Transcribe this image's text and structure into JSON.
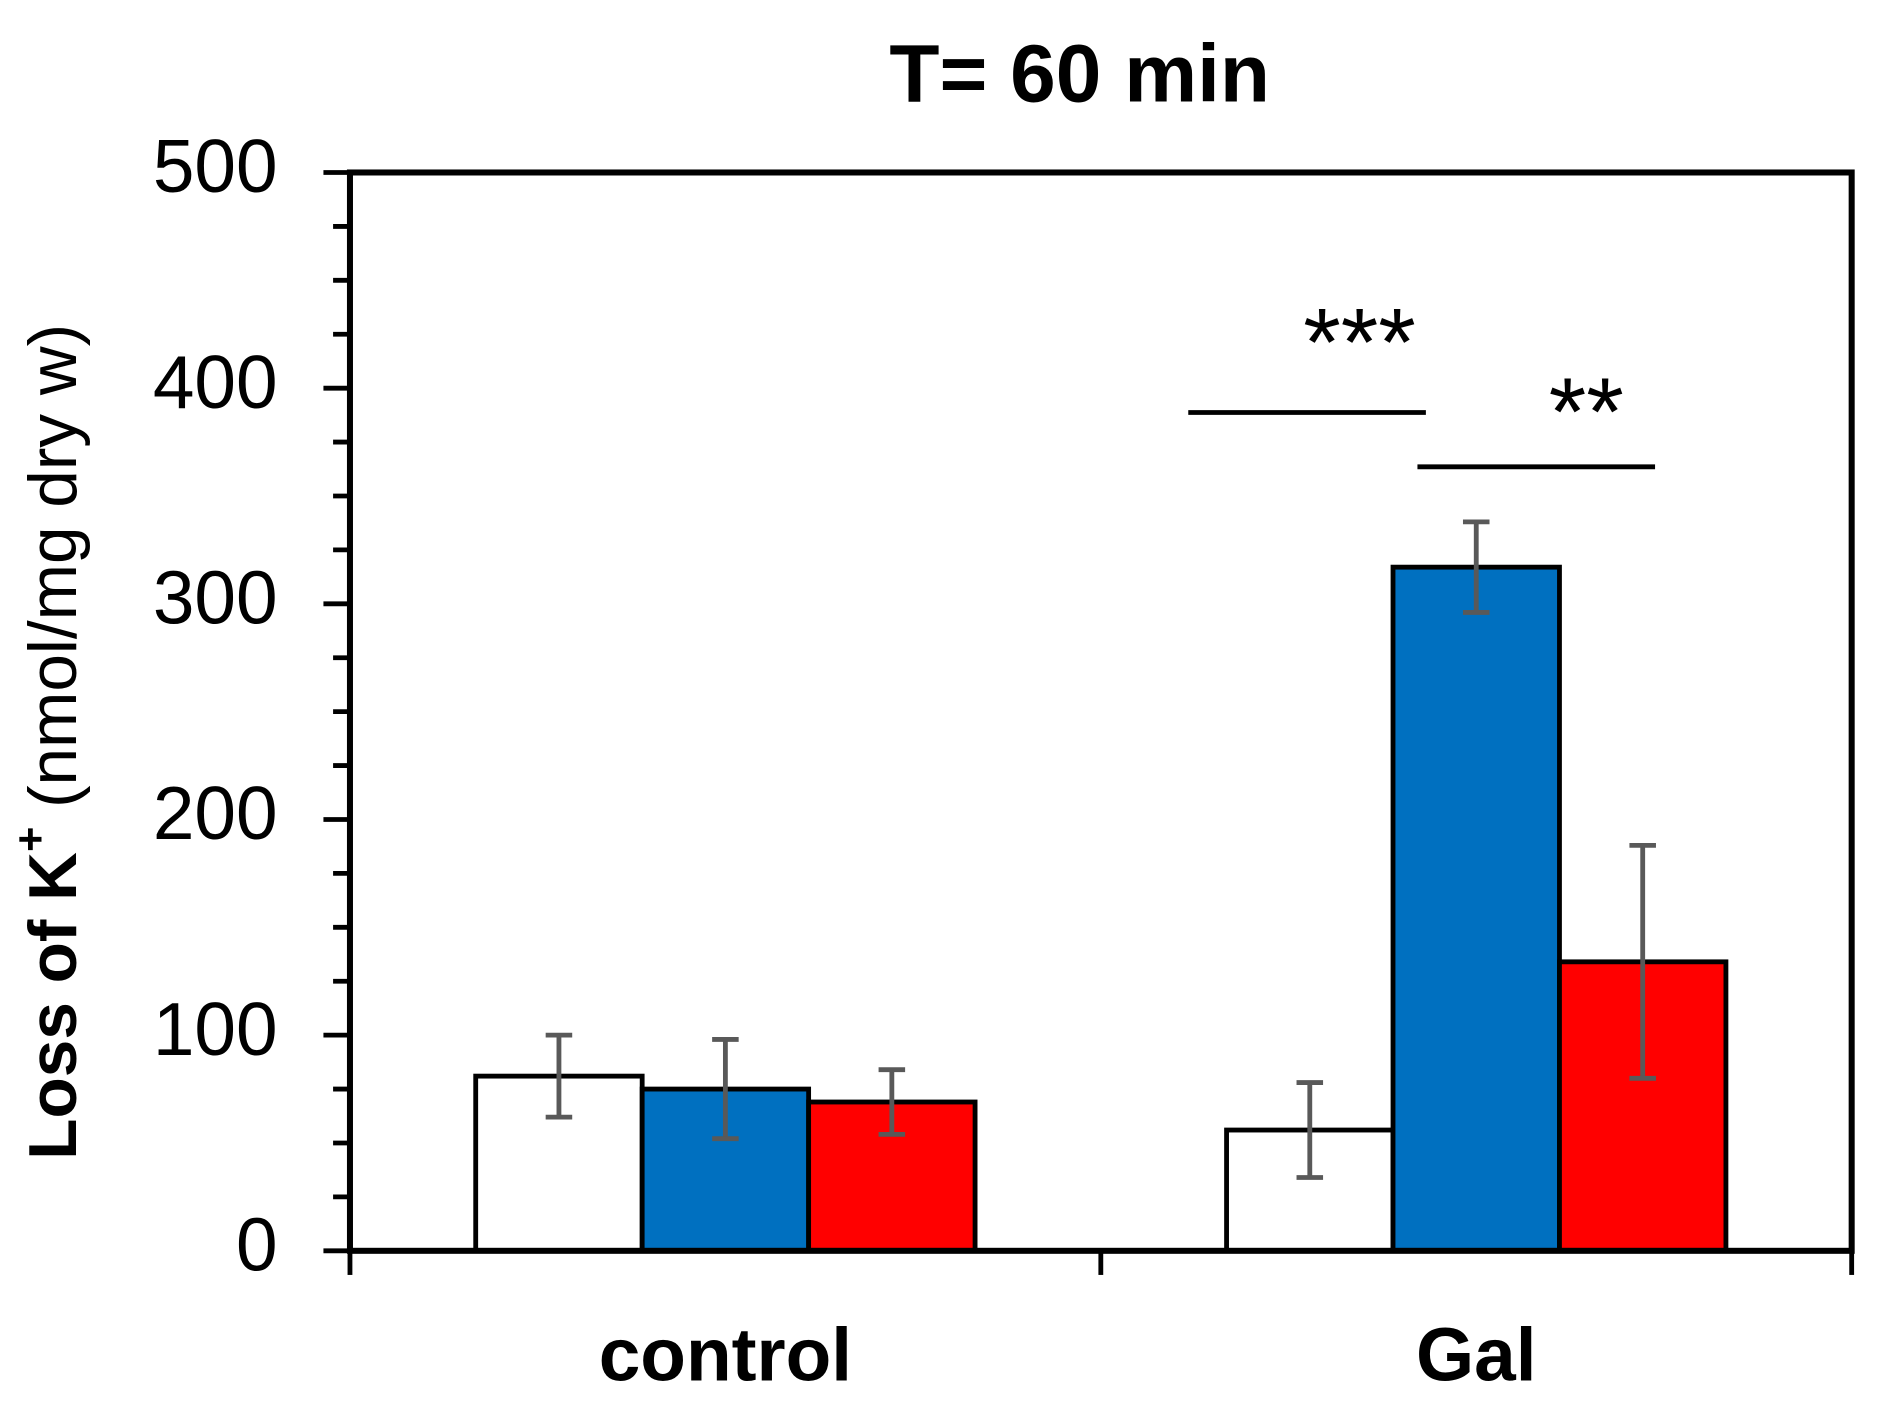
{
  "chart_data": {
    "type": "bar",
    "title": "T= 60 min",
    "ylabel": [
      "Loss of K",
      "+",
      " (nmol/mg dry w)"
    ],
    "categories": [
      "control",
      "Gal"
    ],
    "series": [
      {
        "color": "#ffffff",
        "values": [
          81,
          56
        ],
        "errors": [
          19,
          22
        ]
      },
      {
        "color": "#0070c0",
        "values": [
          75,
          317
        ],
        "errors": [
          23,
          21
        ]
      },
      {
        "color": "#ff0000",
        "values": [
          69,
          134
        ],
        "errors": [
          15,
          54
        ]
      }
    ],
    "ylim": [
      0,
      500
    ],
    "yticks": [
      0,
      100,
      200,
      300,
      400,
      500
    ],
    "minor_yticks": [
      25,
      50,
      75,
      125,
      150,
      175,
      225,
      250,
      275,
      325,
      350,
      375,
      425,
      450,
      475
    ],
    "annotations": [
      "***",
      "**"
    ]
  }
}
